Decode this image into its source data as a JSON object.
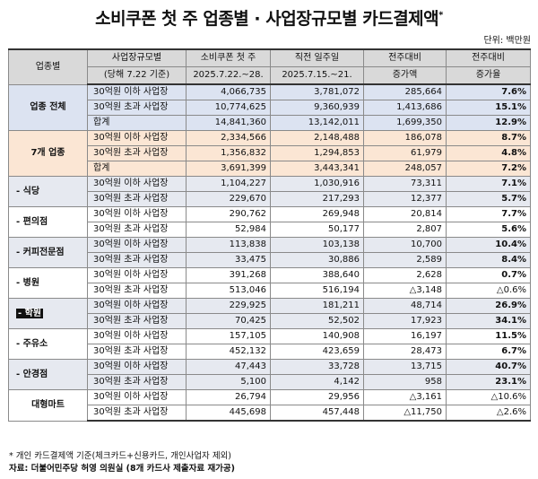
{
  "title": "소비쿠폰 첫 주 업종별 · 사업장규모별 카드결제액",
  "title_mark": "*",
  "unit": "단위: 백만원",
  "header": {
    "col1": "업종별",
    "col2_line1": "사업장규모별",
    "col2_line2": "(당해 7.22 기준)",
    "col3_line1": "소비쿠폰 첫 주",
    "col3_line2": "2025.7.22.~28.",
    "col4_line1": "직전 일주일",
    "col4_line2": "2025.7.15.~21.",
    "col5_line1": "전주대비",
    "col5_line2": "증가액",
    "col6_line1": "전주대비",
    "col6_line2": "증가율"
  },
  "groups": [
    {
      "category": "업종 전체",
      "rows": [
        {
          "scale": "30억원 이하 사업장",
          "this_week": "4,066,735",
          "prev_week": "3,781,072",
          "increase": "285,664",
          "rate": "7.6%"
        },
        {
          "scale": "30억원 초과 사업장",
          "this_week": "10,774,625",
          "prev_week": "9,360,939",
          "increase": "1,413,686",
          "rate": "15.1%"
        },
        {
          "scale": "합계",
          "this_week": "14,841,360",
          "prev_week": "13,142,011",
          "increase": "1,699,350",
          "rate": "12.9%"
        }
      ]
    },
    {
      "category": "7개 업종",
      "rows": [
        {
          "scale": "30억원 이하 사업장",
          "this_week": "2,334,566",
          "prev_week": "2,148,488",
          "increase": "186,078",
          "rate": "8.7%"
        },
        {
          "scale": "30억원 초과 사업장",
          "this_week": "1,356,832",
          "prev_week": "1,294,853",
          "increase": "61,979",
          "rate": "4.8%"
        },
        {
          "scale": "합계",
          "this_week": "3,691,399",
          "prev_week": "3,443,341",
          "increase": "248,057",
          "rate": "7.2%"
        }
      ]
    },
    {
      "category": "- 식당",
      "rows": [
        {
          "scale": "30억원 이하 사업장",
          "this_week": "1,104,227",
          "prev_week": "1,030,916",
          "increase": "73,311",
          "rate": "7.1%"
        },
        {
          "scale": "30억원 초과 사업장",
          "this_week": "229,670",
          "prev_week": "217,293",
          "increase": "12,377",
          "rate": "5.7%"
        }
      ]
    },
    {
      "category": "- 편의점",
      "rows": [
        {
          "scale": "30억원 이하 사업장",
          "this_week": "290,762",
          "prev_week": "269,948",
          "increase": "20,814",
          "rate": "7.7%"
        },
        {
          "scale": "30억원 초과 사업장",
          "this_week": "52,984",
          "prev_week": "50,177",
          "increase": "2,807",
          "rate": "5.6%"
        }
      ]
    },
    {
      "category": "- 커피전문점",
      "rows": [
        {
          "scale": "30억원 이하 사업장",
          "this_week": "113,838",
          "prev_week": "103,138",
          "increase": "10,700",
          "rate": "10.4%"
        },
        {
          "scale": "30억원 초과 사업장",
          "this_week": "33,475",
          "prev_week": "30,886",
          "increase": "2,589",
          "rate": "8.4%"
        }
      ]
    },
    {
      "category": "- 병원",
      "rows": [
        {
          "scale": "30억원 이하 사업장",
          "this_week": "391,268",
          "prev_week": "388,640",
          "increase": "2,628",
          "rate": "0.7%"
        },
        {
          "scale": "30억원 초과 사업장",
          "this_week": "513,046",
          "prev_week": "516,194",
          "increase": "△3,148",
          "rate": "△0.6%"
        }
      ]
    },
    {
      "category": "- 학원",
      "highlight": true,
      "rows": [
        {
          "scale": "30억원 이하 사업장",
          "this_week": "229,925",
          "prev_week": "181,211",
          "increase": "48,714",
          "rate": "26.9%"
        },
        {
          "scale": "30억원 초과 사업장",
          "this_week": "70,425",
          "prev_week": "52,502",
          "increase": "17,923",
          "rate": "34.1%"
        }
      ]
    },
    {
      "category": "- 주유소",
      "rows": [
        {
          "scale": "30억원 이하 사업장",
          "this_week": "157,105",
          "prev_week": "140,908",
          "increase": "16,197",
          "rate": "11.5%"
        },
        {
          "scale": "30억원 초과 사업장",
          "this_week": "452,132",
          "prev_week": "423,659",
          "increase": "28,473",
          "rate": "6.7%"
        }
      ]
    },
    {
      "category": "- 안경점",
      "rows": [
        {
          "scale": "30억원 이하 사업장",
          "this_week": "47,443",
          "prev_week": "33,728",
          "increase": "13,715",
          "rate": "40.7%"
        },
        {
          "scale": "30억원 초과 사업장",
          "this_week": "5,100",
          "prev_week": "4,142",
          "increase": "958",
          "rate": "23.1%"
        }
      ]
    },
    {
      "category": "대형마트",
      "rows": [
        {
          "scale": "30억원 이하 사업장",
          "this_week": "26,794",
          "prev_week": "29,956",
          "increase": "△3,161",
          "rate": "△10.6%"
        },
        {
          "scale": "30억원 초과 사업장",
          "this_week": "445,698",
          "prev_week": "457,448",
          "increase": "△11,750",
          "rate": "△2.6%"
        }
      ]
    }
  ],
  "footnote": "* 개인 카드결제액 기준(체크카드+신용카드, 개인사업자 제외)",
  "source": "자료: 더불어민주당 허영 의원실 (8개 카드사 제출자료 재가공)"
}
